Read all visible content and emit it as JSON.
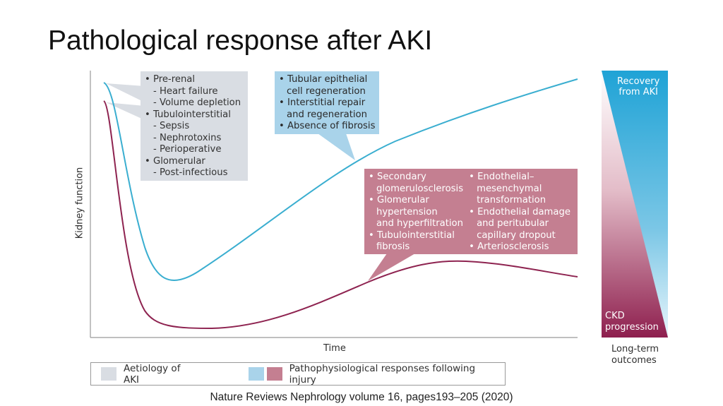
{
  "title": "Pathological response after AKI",
  "y_axis_label": "Kidney function",
  "x_axis_label": "Time",
  "aetiology_box": [
    {
      "text": "• Pre-renal",
      "level": 0
    },
    {
      "text": "- Heart failure",
      "level": 1
    },
    {
      "text": "- Volume depletion",
      "level": 1
    },
    {
      "text": "• Tubulointerstitial",
      "level": 0
    },
    {
      "text": "- Sepsis",
      "level": 1
    },
    {
      "text": "- Nephrotoxins",
      "level": 1
    },
    {
      "text": "- Perioperative",
      "level": 1
    },
    {
      "text": "• Glomerular",
      "level": 0
    },
    {
      "text": "- Post-infectious",
      "level": 1
    }
  ],
  "recovery_box": [
    "• Tubular epithelial",
    "cell regeneration",
    "• Interstitial repair",
    "and regeneration",
    "• Absence of fibrosis"
  ],
  "progression_box": {
    "col1": [
      "• Secondary",
      "glomerulosclerosis",
      "• Glomerular",
      "hypertension",
      "and hyperfiltration",
      "• Tubulointerstitial",
      "fibrosis"
    ],
    "col2": [
      "• Endothelial–",
      "mesenchymal",
      "transformation",
      "• Endothelial damage",
      "and peritubular",
      "capillary dropout",
      "• Arteriosclerosis"
    ]
  },
  "outcomes": {
    "recovery": [
      "Recovery",
      "from AKI"
    ],
    "ckd": [
      "CKD",
      "progression"
    ],
    "label": [
      "Long-term",
      "outcomes"
    ]
  },
  "legend": {
    "aetiology": "Aetiology of AKI",
    "responses": "Pathophysiological responses following injury"
  },
  "colors": {
    "blue": "#3aaed0",
    "pink": "#8e2350",
    "gray_box": "#d9dde3",
    "blue_box": "#a9d3ea",
    "pink_box": "#c47f91"
  },
  "citation": "Nature Reviews Nephrology volume 16, pages193–205 (2020)"
}
